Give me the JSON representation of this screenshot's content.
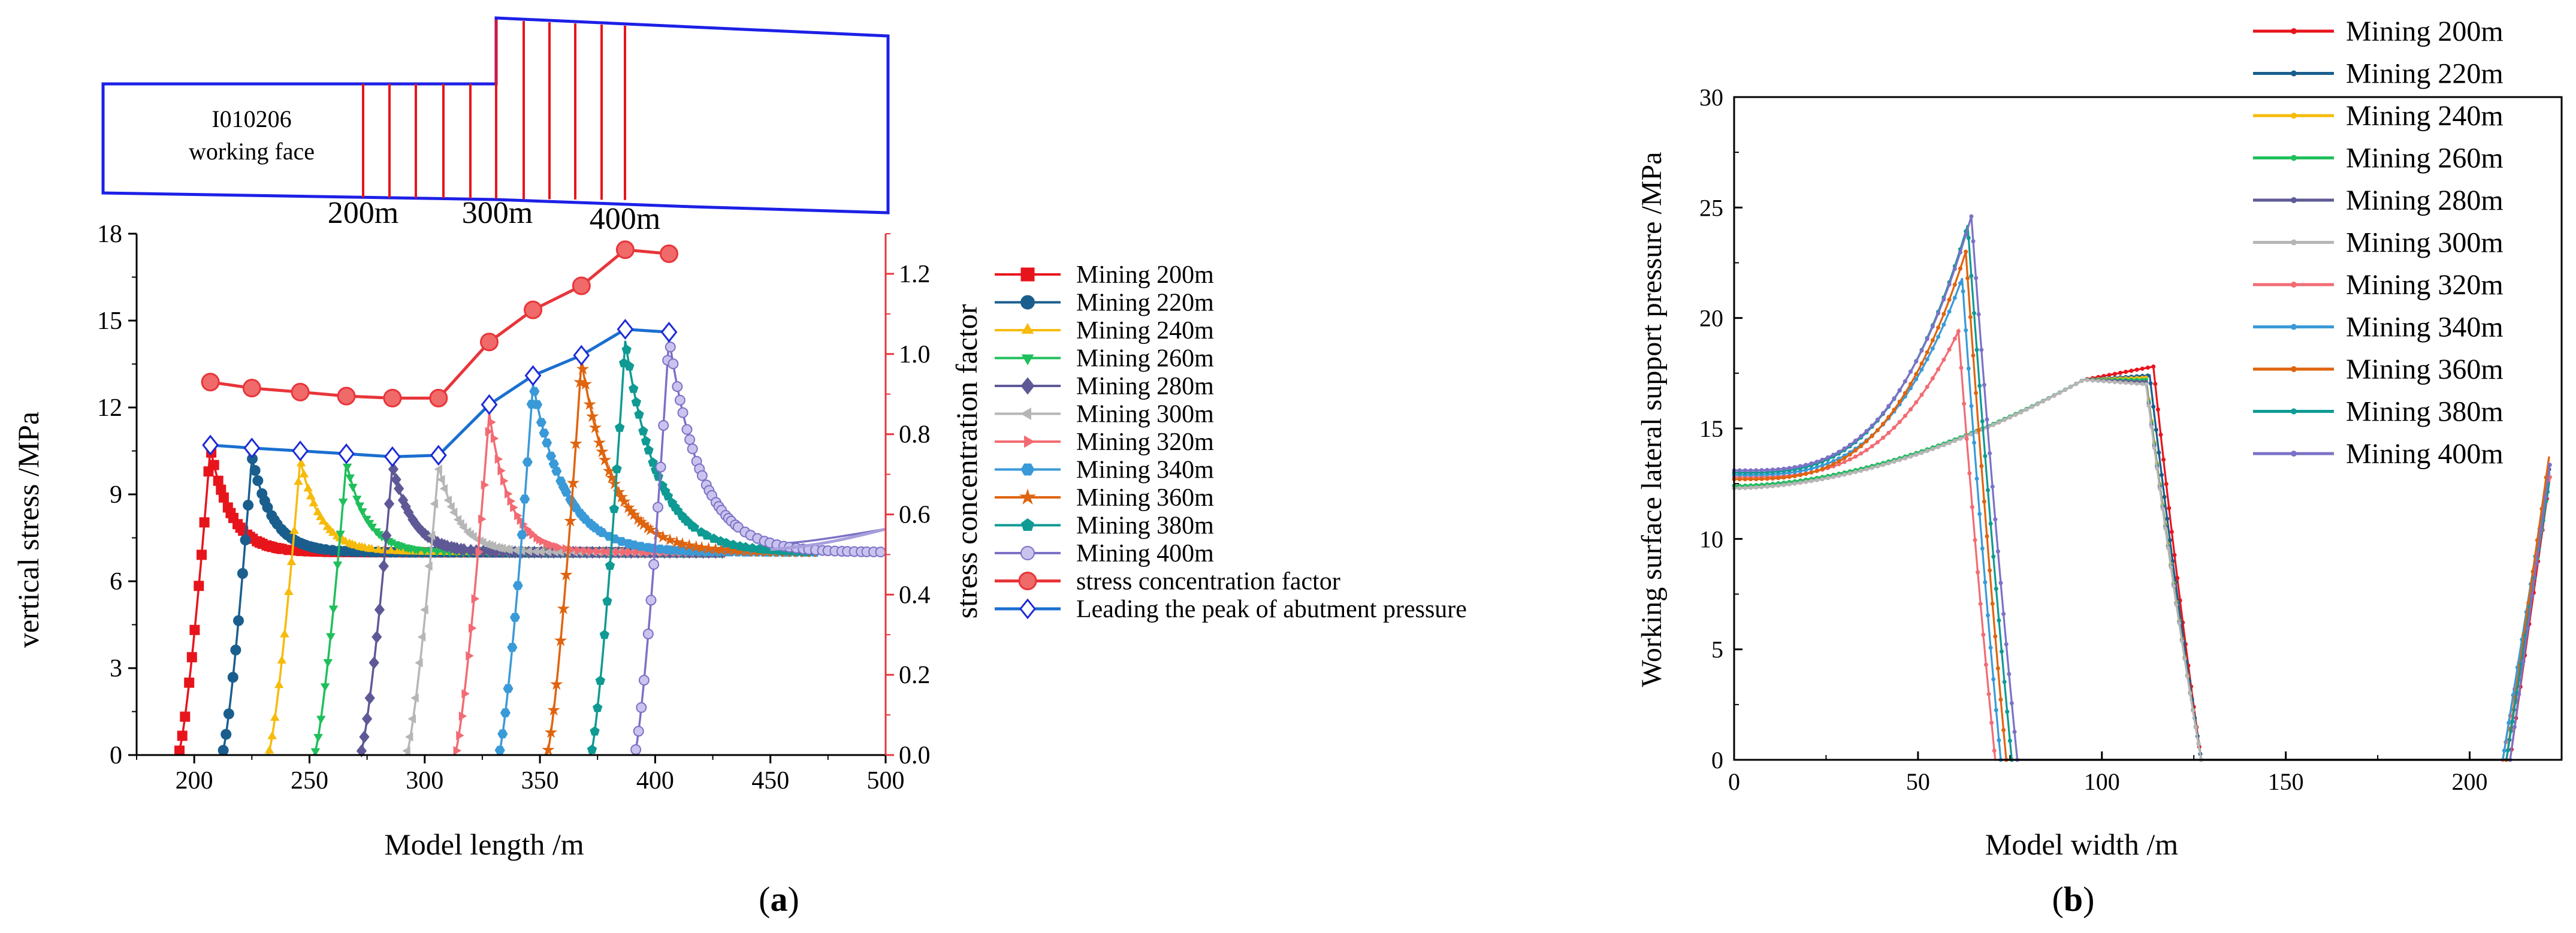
{
  "series_names": [
    "Mining 200m",
    "Mining 220m",
    "Mining 240m",
    "Mining 260m",
    "Mining 280m",
    "Mining 300m",
    "Mining 320m",
    "Mining 340m",
    "Mining 360m",
    "Mining 380m",
    "Mining 400m"
  ],
  "series_colors": [
    "#e8141c",
    "#1a5e8e",
    "#f6bb0b",
    "#1fbf5b",
    "#5e5996",
    "#b6b6b6",
    "#f26b73",
    "#3a9ad8",
    "#df640f",
    "#0f9a93",
    "#7b71c6"
  ],
  "panel_a": {
    "schematic": {
      "face_label_line1": "I010206",
      "face_label_line2": "working face",
      "marks": [
        "200m",
        "300m",
        "400m"
      ]
    },
    "caption_prefix": "(",
    "caption_letter": "a",
    "caption_suffix": ")"
  },
  "panel_b": {
    "caption_prefix": "(",
    "caption_letter": "b",
    "caption_suffix": ")"
  },
  "chart_data": [
    {
      "id": "a",
      "type": "line",
      "xlabel": "Model length /m",
      "ylabel": "vertical stress /MPa",
      "y2label": "stress concentration factor",
      "xlim": [
        175,
        500
      ],
      "ylim": [
        0,
        18
      ],
      "y2lim": [
        0,
        1.3
      ],
      "xticks": [
        200,
        250,
        300,
        350,
        400,
        450,
        500
      ],
      "yticks": [
        0,
        3,
        6,
        9,
        12,
        15,
        18
      ],
      "y2ticks": [
        0.0,
        0.2,
        0.4,
        0.6,
        0.8,
        1.0,
        1.2
      ],
      "y2_color": "#e8353a",
      "series_peaks": [
        {
          "name": "Mining 200m",
          "marker": "square",
          "x0": 193,
          "peak_x": 207,
          "peak_y": 10.6
        },
        {
          "name": "Mining 220m",
          "marker": "circle",
          "x0": 212,
          "peak_x": 225,
          "peak_y": 10.3
        },
        {
          "name": "Mining 240m",
          "marker": "triangle-up",
          "x0": 232,
          "peak_x": 246,
          "peak_y": 10.2
        },
        {
          "name": "Mining 260m",
          "marker": "triangle-down",
          "x0": 252,
          "peak_x": 266,
          "peak_y": 10.1
        },
        {
          "name": "Mining 280m",
          "marker": "diamond",
          "x0": 272,
          "peak_x": 286,
          "peak_y": 10.0
        },
        {
          "name": "Mining 300m",
          "marker": "triangle-left",
          "x0": 292,
          "peak_x": 306,
          "peak_y": 10.0
        },
        {
          "name": "Mining 320m",
          "marker": "triangle-right",
          "x0": 313,
          "peak_x": 328,
          "peak_y": 11.8
        },
        {
          "name": "Mining 340m",
          "marker": "hexagon",
          "x0": 332,
          "peak_x": 347,
          "peak_y": 12.8
        },
        {
          "name": "Mining 360m",
          "marker": "star",
          "x0": 353,
          "peak_x": 368,
          "peak_y": 13.6
        },
        {
          "name": "Mining 380m",
          "marker": "pentagon",
          "x0": 372,
          "peak_x": 387,
          "peak_y": 14.3
        },
        {
          "name": "Mining 400m",
          "marker": "circle-open",
          "x0": 391,
          "peak_x": 406,
          "peak_y": 14.4
        }
      ],
      "baseline_stress": 7.0,
      "far_field": {
        "x": [
          450,
          500
        ],
        "y": [
          7.1,
          7.8
        ]
      },
      "stress_concentration_factor": {
        "name": "stress concentration factor",
        "x": [
          207,
          225,
          246,
          266,
          286,
          306,
          328,
          347,
          368,
          387,
          406
        ],
        "y": [
          0.93,
          0.915,
          0.905,
          0.895,
          0.89,
          0.89,
          1.03,
          1.11,
          1.17,
          1.26,
          1.25
        ]
      },
      "leading_peak": {
        "name": "Leading the peak of abutment pressure",
        "x": [
          207,
          225,
          246,
          266,
          286,
          306,
          328,
          347,
          368,
          387,
          406
        ],
        "y": [
          10.7,
          10.6,
          10.5,
          10.4,
          10.3,
          10.35,
          12.1,
          13.1,
          13.8,
          14.7,
          14.6
        ]
      }
    },
    {
      "id": "b",
      "type": "line",
      "xlabel": "Model width /m",
      "ylabel": "Working surface lateral support pressure /MPa",
      "xlim": [
        0,
        225
      ],
      "ylim": [
        0,
        30
      ],
      "xticks": [
        0,
        50,
        100,
        150,
        200
      ],
      "yticks": [
        0,
        5,
        10,
        15,
        20,
        25,
        30
      ],
      "series": [
        {
          "name": "Mining 200m",
          "shape": "plateau",
          "start": 12.3,
          "peak_x": 114,
          "peak_y": 17.8,
          "drop_end": 127,
          "rise_start": 211
        },
        {
          "name": "Mining 220m",
          "shape": "plateau",
          "start": 12.4,
          "peak_x": 113,
          "peak_y": 17.4,
          "drop_end": 127,
          "rise_start": 210
        },
        {
          "name": "Mining 240m",
          "shape": "plateau",
          "start": 12.3,
          "peak_x": 112,
          "peak_y": 17.3,
          "drop_end": 127,
          "rise_start": 210
        },
        {
          "name": "Mining 260m",
          "shape": "plateau",
          "start": 12.4,
          "peak_x": 112,
          "peak_y": 17.2,
          "drop_end": 127,
          "rise_start": 210
        },
        {
          "name": "Mining 280m",
          "shape": "plateau",
          "start": 12.3,
          "peak_x": 112,
          "peak_y": 17.1,
          "drop_end": 127,
          "rise_start": 210
        },
        {
          "name": "Mining 300m",
          "shape": "plateau",
          "start": 12.3,
          "peak_x": 112,
          "peak_y": 17.0,
          "drop_end": 127,
          "rise_start": 210
        },
        {
          "name": "Mining 320m",
          "shape": "peak",
          "start": 12.8,
          "peak_x": 61,
          "peak_y": 19.4,
          "drop_end": 71,
          "rise_start": 209
        },
        {
          "name": "Mining 340m",
          "shape": "peak",
          "start": 12.9,
          "peak_x": 62,
          "peak_y": 21.8,
          "drop_end": 72.5,
          "rise_start": 209
        },
        {
          "name": "Mining 360m",
          "shape": "peak",
          "start": 12.7,
          "peak_x": 63,
          "peak_y": 23.0,
          "drop_end": 74,
          "rise_start": 210
        },
        {
          "name": "Mining 380m",
          "shape": "peak",
          "start": 13.0,
          "peak_x": 63.5,
          "peak_y": 24.2,
          "drop_end": 75.5,
          "rise_start": 210
        },
        {
          "name": "Mining 400m",
          "shape": "peak",
          "start": 13.1,
          "peak_x": 64.5,
          "peak_y": 24.6,
          "drop_end": 77,
          "rise_start": 211
        }
      ]
    }
  ]
}
